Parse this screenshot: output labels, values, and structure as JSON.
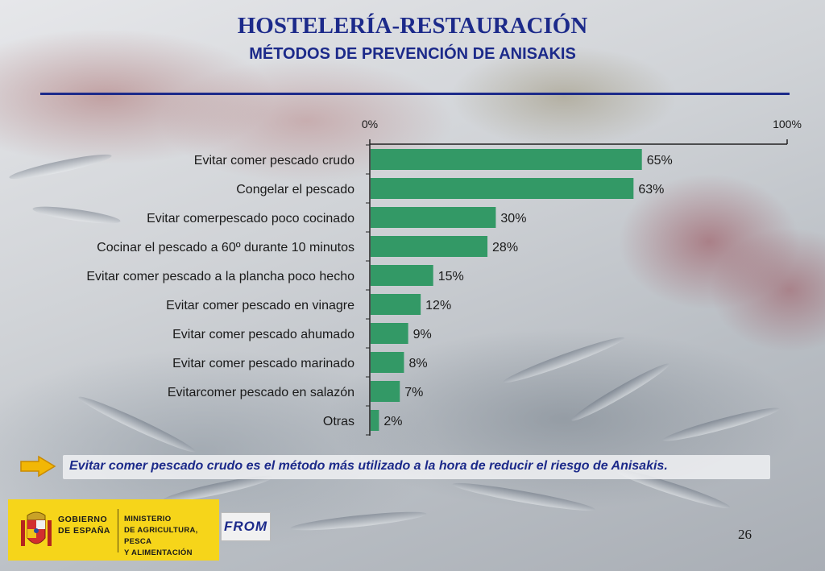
{
  "header": {
    "title": "HOSTELERÍA-RESTAURACIÓN",
    "subtitle": "MÉTODOS DE PREVENCIÓN DE ANISAKIS"
  },
  "chart_data": {
    "type": "bar",
    "orientation": "horizontal",
    "categories": [
      "Evitar comer pescado crudo",
      "Congelar el pescado",
      "Evitar comerpescado poco cocinado",
      "Cocinar el pescado a 60º durante 10 minutos",
      "Evitar comer pescado a la plancha poco hecho",
      "Evitar comer pescado en vinagre",
      "Evitar comer pescado ahumado",
      "Evitar comer pescado marinado",
      "Evitarcomer pescado en salazón",
      "Otras"
    ],
    "values": [
      65,
      63,
      30,
      28,
      15,
      12,
      9,
      8,
      7,
      2
    ],
    "value_labels": [
      "65%",
      "63%",
      "30%",
      "28%",
      "15%",
      "12%",
      "9%",
      "8%",
      "7%",
      "2%"
    ],
    "xlim": [
      0,
      100
    ],
    "x_tick_labels": [
      "0%",
      "100%"
    ],
    "axis_position": "top",
    "bar_color": "#339966",
    "grid": false
  },
  "note": {
    "text": "Evitar comer pescado crudo es el método más utilizado a la hora de reducir el riesgo de Anisakis."
  },
  "footer": {
    "gov_line1": "GOBIERNO",
    "gov_line2": "DE ESPAÑA",
    "ministry_line1": "MINISTERIO",
    "ministry_line2": "DE AGRICULTURA, PESCA",
    "ministry_line3": "Y ALIMENTACIÓN",
    "from_logo": "FROM",
    "page_number": "26"
  },
  "colors": {
    "title": "#1c2a8a",
    "bar": "#339966",
    "footer_band": "#f6d51a"
  }
}
